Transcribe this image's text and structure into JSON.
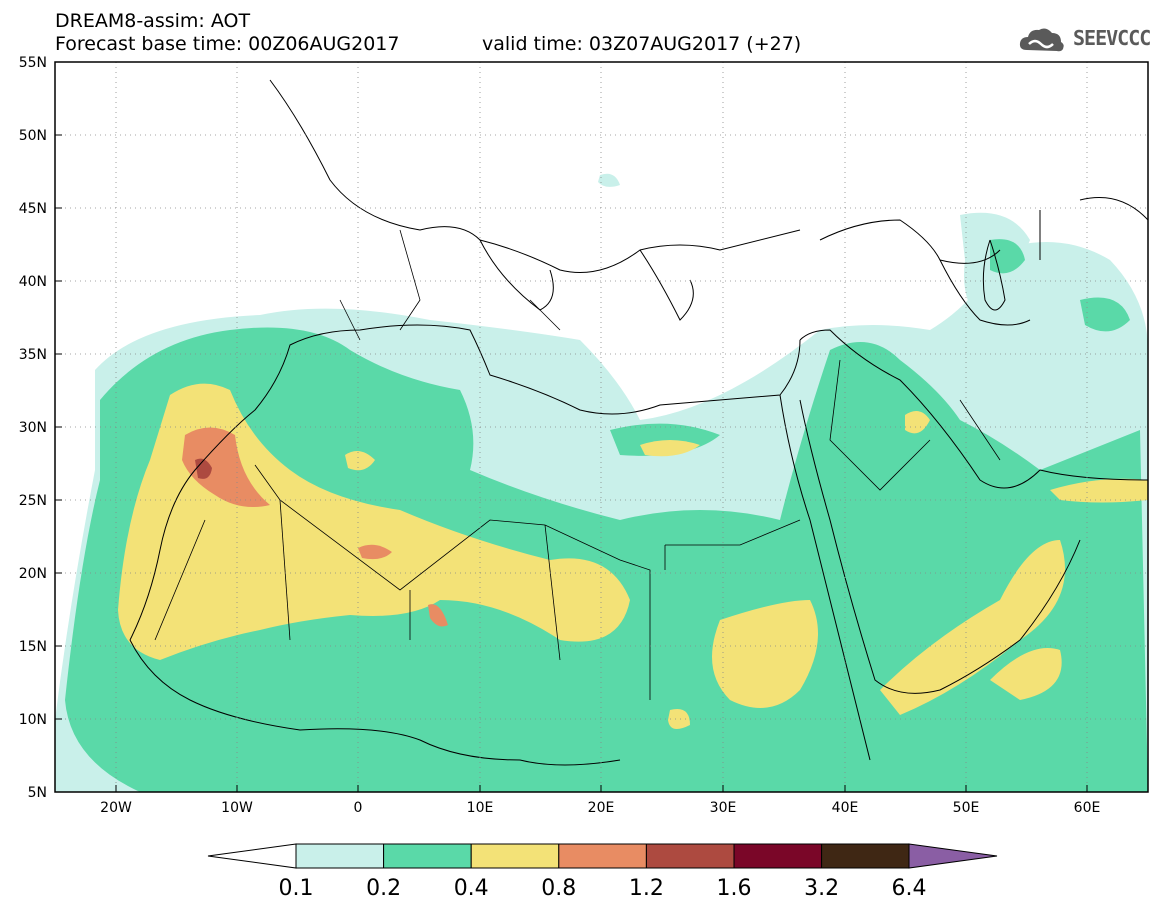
{
  "header": {
    "title": "DREAM8-assim: AOT",
    "base_time": "Forecast base time: 00Z06AUG2017",
    "valid_time": "valid time: 03Z07AUG2017 (+27)",
    "logo_text": "SEEVCCC"
  },
  "map": {
    "lon_range": [
      -25,
      65
    ],
    "lat_range": [
      5,
      55
    ],
    "lat_labels": [
      "5N",
      "10N",
      "15N",
      "20N",
      "25N",
      "30N",
      "35N",
      "40N",
      "45N",
      "50N",
      "55N"
    ],
    "lon_labels": [
      "20W",
      "10W",
      "0",
      "10E",
      "20E",
      "30E",
      "40E",
      "50E",
      "60E"
    ]
  },
  "colorbar": {
    "labels": [
      "0.1",
      "0.2",
      "0.4",
      "0.8",
      "1.2",
      "1.6",
      "3.2",
      "6.4"
    ],
    "colors": [
      "#c9f0ea",
      "#5ad9a8",
      "#f3e277",
      "#e88c63",
      "#ad4a40",
      "#7a0628",
      "#3f2714"
    ],
    "under_color": "#ffffff",
    "over_color": "#8a5ea4"
  }
}
